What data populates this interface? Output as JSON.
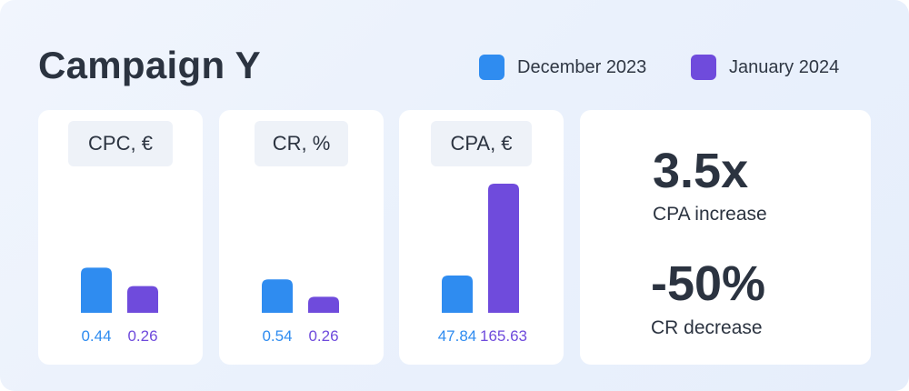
{
  "title": "Campaign Y",
  "colors": {
    "dec": "#2f8cf0",
    "jan": "#6f4bdc"
  },
  "legend": [
    {
      "label": "December 2023",
      "color": "#2f8cf0"
    },
    {
      "label": "January 2024",
      "color": "#6f4bdc"
    }
  ],
  "chart_data": [
    {
      "type": "bar",
      "title": "CPC, €",
      "categories": [
        "December 2023",
        "January 2024"
      ],
      "values": [
        0.44,
        0.26
      ],
      "value_labels": [
        "0.44",
        "0.26"
      ]
    },
    {
      "type": "bar",
      "title": "CR, %",
      "categories": [
        "December 2023",
        "January 2024"
      ],
      "values": [
        0.54,
        0.26
      ],
      "value_labels": [
        "0.54",
        "0.26"
      ]
    },
    {
      "type": "bar",
      "title": "CPA, €",
      "categories": [
        "December 2023",
        "January 2024"
      ],
      "values": [
        47.84,
        165.63
      ],
      "value_labels": [
        "47.84",
        "165.63"
      ]
    }
  ],
  "kpis": [
    {
      "value": "3.5x",
      "label": "CPA increase"
    },
    {
      "value": "-50%",
      "label": "CR decrease"
    }
  ]
}
